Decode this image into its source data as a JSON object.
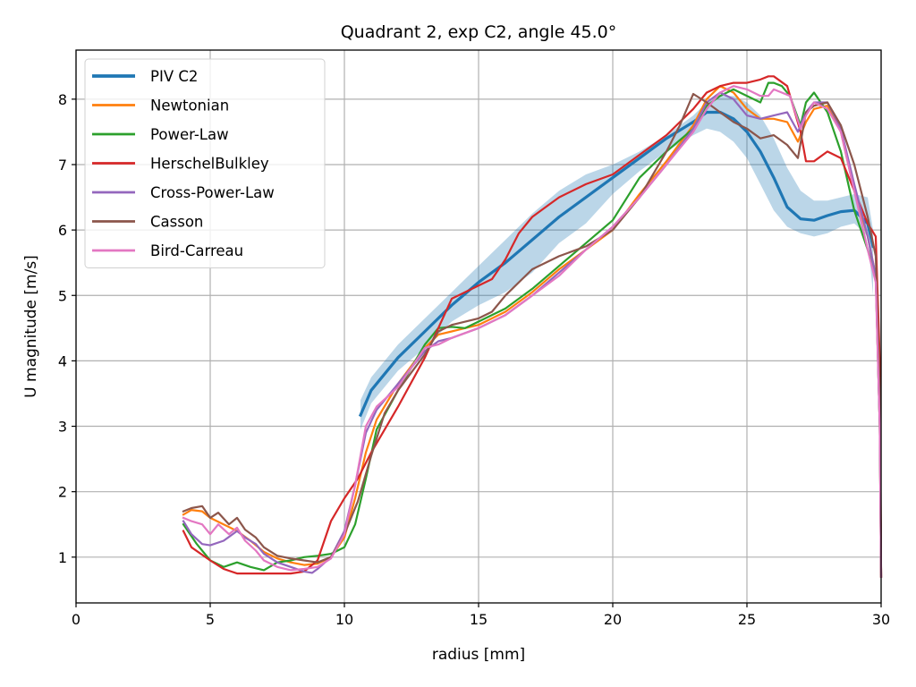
{
  "chart_data": {
    "type": "line",
    "title": "Quadrant 2, exp C2, angle 45.0°",
    "xlabel": "radius [mm]",
    "ylabel": "U magnitude [m/s]",
    "xlim": [
      0,
      30
    ],
    "ylim": [
      0.3,
      8.75
    ],
    "xticks": [
      0,
      5,
      10,
      15,
      20,
      25,
      30
    ],
    "yticks": [
      1,
      2,
      3,
      4,
      5,
      6,
      7,
      8
    ],
    "grid": true,
    "legend_position": "top-left",
    "band": {
      "series": "PIV C2",
      "color": "#1f77b4",
      "opacity": 0.3,
      "x": [
        10.6,
        11,
        12,
        13,
        14,
        15,
        16,
        17,
        18,
        19,
        20,
        21,
        22,
        23,
        23.5,
        24,
        24.5,
        25,
        25.5,
        26,
        26.5,
        27,
        27.5,
        28,
        28.5,
        29,
        29.5,
        29.7
      ],
      "upper": [
        3.4,
        3.75,
        4.25,
        4.65,
        5.05,
        5.45,
        5.85,
        6.25,
        6.6,
        6.85,
        7.0,
        7.2,
        7.45,
        7.75,
        7.95,
        8.05,
        8.05,
        7.95,
        7.75,
        7.4,
        6.95,
        6.6,
        6.45,
        6.45,
        6.5,
        6.55,
        6.5,
        6.0
      ],
      "lower": [
        2.95,
        3.35,
        3.85,
        4.2,
        4.6,
        4.85,
        5.05,
        5.35,
        5.8,
        6.1,
        6.55,
        6.9,
        7.2,
        7.45,
        7.55,
        7.5,
        7.35,
        7.1,
        6.7,
        6.3,
        6.05,
        5.95,
        5.9,
        5.95,
        6.05,
        6.1,
        5.9,
        5.0
      ]
    },
    "series": [
      {
        "name": "PIV C2",
        "color": "#1f77b4",
        "width": 3.2,
        "x": [
          10.6,
          11,
          12,
          13,
          14,
          15,
          16,
          17,
          18,
          19,
          20,
          21,
          22,
          23,
          23.5,
          24,
          24.5,
          25,
          25.5,
          26,
          26.5,
          27,
          27.5,
          28,
          28.5,
          29,
          29.5,
          29.7
        ],
        "y": [
          3.17,
          3.55,
          4.05,
          4.45,
          4.85,
          5.2,
          5.5,
          5.85,
          6.2,
          6.5,
          6.8,
          7.1,
          7.4,
          7.65,
          7.8,
          7.8,
          7.7,
          7.5,
          7.2,
          6.8,
          6.35,
          6.17,
          6.15,
          6.22,
          6.28,
          6.3,
          6.1,
          5.75
        ]
      },
      {
        "name": "Newtonian",
        "color": "#ff7f0e",
        "width": 2.2,
        "x": [
          4.0,
          4.3,
          4.7,
          5.0,
          5.5,
          6.0,
          6.5,
          7.0,
          7.5,
          8.0,
          8.5,
          9.0,
          9.5,
          10.0,
          10.4,
          10.8,
          11.2,
          12,
          13,
          13.5,
          14,
          15,
          16,
          17,
          18,
          19,
          20,
          21,
          22,
          23,
          23.5,
          24,
          24.5,
          25,
          25.5,
          26,
          26.5,
          26.9,
          27.2,
          27.5,
          28,
          28.5,
          29,
          29.5,
          29.8,
          29.95,
          30.0
        ],
        "y": [
          1.65,
          1.72,
          1.7,
          1.6,
          1.5,
          1.4,
          1.25,
          1.08,
          0.98,
          0.92,
          0.88,
          0.9,
          1.0,
          1.3,
          1.9,
          2.6,
          3.1,
          3.65,
          4.2,
          4.4,
          4.45,
          4.55,
          4.75,
          5.05,
          5.4,
          5.7,
          6.0,
          6.55,
          7.05,
          7.6,
          8.0,
          8.2,
          8.1,
          7.85,
          7.7,
          7.7,
          7.65,
          7.35,
          7.65,
          7.85,
          7.9,
          7.5,
          6.6,
          5.9,
          5.3,
          3.0,
          0.7
        ]
      },
      {
        "name": "Power-Law",
        "color": "#2ca02c",
        "width": 2.2,
        "x": [
          4.0,
          4.5,
          5.0,
          5.5,
          6.0,
          6.5,
          7.0,
          7.5,
          8.0,
          8.5,
          9.0,
          9.5,
          10.0,
          10.4,
          10.8,
          11.2,
          12,
          13,
          13.5,
          14,
          14.5,
          15,
          16,
          17,
          18,
          19,
          20,
          21,
          22,
          23,
          23.5,
          24,
          24.5,
          25,
          25.5,
          25.8,
          26,
          26.3,
          26.6,
          27,
          27.2,
          27.5,
          28,
          28.5,
          29,
          29.5,
          29.8,
          29.95,
          30.0
        ],
        "y": [
          1.5,
          1.2,
          0.95,
          0.85,
          0.92,
          0.85,
          0.8,
          0.92,
          0.95,
          1.0,
          1.02,
          1.05,
          1.15,
          1.5,
          2.2,
          2.95,
          3.55,
          4.25,
          4.5,
          4.52,
          4.5,
          4.6,
          4.8,
          5.1,
          5.45,
          5.8,
          6.15,
          6.8,
          7.2,
          7.55,
          7.9,
          8.05,
          8.15,
          8.05,
          7.95,
          8.25,
          8.25,
          8.2,
          8.05,
          7.6,
          7.95,
          8.1,
          7.8,
          7.2,
          6.3,
          5.7,
          5.3,
          3.0,
          0.7
        ]
      },
      {
        "name": "HerschelBulkley",
        "color": "#d62728",
        "width": 2.2,
        "x": [
          4.0,
          4.3,
          5.0,
          5.5,
          6.0,
          6.5,
          7.0,
          7.5,
          8.0,
          8.5,
          9.0,
          9.5,
          10.0,
          10.5,
          11,
          12,
          13,
          14,
          15,
          15.5,
          16,
          16.5,
          17,
          17.5,
          18,
          19,
          20,
          21,
          22,
          23,
          23.5,
          24,
          24.5,
          25,
          25.5,
          25.8,
          26,
          26.5,
          27,
          27.2,
          27.5,
          28,
          28.5,
          29,
          29.5,
          29.8,
          29.95,
          30.0
        ],
        "y": [
          1.4,
          1.15,
          0.95,
          0.82,
          0.75,
          0.75,
          0.75,
          0.75,
          0.75,
          0.78,
          0.95,
          1.55,
          1.9,
          2.2,
          2.6,
          3.3,
          4.05,
          4.95,
          5.15,
          5.25,
          5.55,
          5.95,
          6.2,
          6.35,
          6.5,
          6.7,
          6.85,
          7.15,
          7.45,
          7.85,
          8.1,
          8.2,
          8.25,
          8.25,
          8.3,
          8.35,
          8.35,
          8.2,
          7.5,
          7.05,
          7.05,
          7.2,
          7.1,
          6.6,
          6.1,
          5.9,
          4.0,
          0.7
        ]
      },
      {
        "name": "Cross-Power-Law",
        "color": "#9467bd",
        "width": 2.2,
        "x": [
          4.0,
          4.3,
          4.7,
          5.0,
          5.5,
          6.0,
          6.3,
          6.7,
          7.0,
          7.5,
          8.0,
          8.5,
          8.8,
          9.0,
          9.5,
          10.0,
          10.4,
          10.8,
          11.2,
          12,
          13,
          13.5,
          14,
          15,
          16,
          17,
          18,
          19,
          20,
          21,
          22,
          23,
          23.5,
          24,
          24.5,
          25,
          25.5,
          26,
          26.5,
          26.9,
          27.2,
          27.5,
          28,
          28.5,
          29,
          29.5,
          29.8,
          29.95,
          30.0
        ],
        "y": [
          1.55,
          1.35,
          1.2,
          1.18,
          1.25,
          1.4,
          1.3,
          1.2,
          1.05,
          0.92,
          0.85,
          0.78,
          0.76,
          0.82,
          1.0,
          1.4,
          2.1,
          2.9,
          3.25,
          3.65,
          4.15,
          4.3,
          4.35,
          4.5,
          4.7,
          5.0,
          5.35,
          5.7,
          6.05,
          6.5,
          7.0,
          7.55,
          7.95,
          8.1,
          8.0,
          7.75,
          7.7,
          7.75,
          7.8,
          7.5,
          7.8,
          7.95,
          7.95,
          7.55,
          6.7,
          5.9,
          5.3,
          3.0,
          0.7
        ]
      },
      {
        "name": "Casson",
        "color": "#8c564b",
        "width": 2.2,
        "x": [
          4.0,
          4.3,
          4.7,
          5.0,
          5.3,
          5.7,
          6.0,
          6.3,
          6.7,
          7.0,
          7.5,
          8.0,
          8.5,
          9.0,
          9.5,
          10.0,
          10.5,
          11,
          11.5,
          12,
          13,
          13.5,
          14,
          15,
          15.5,
          16,
          17,
          18,
          19,
          20,
          21,
          22,
          22.5,
          23,
          23.5,
          24,
          24.5,
          25,
          25.5,
          26,
          26.5,
          26.9,
          27.2,
          27.5,
          28,
          28.5,
          29,
          29.5,
          29.8,
          29.95,
          30.0
        ],
        "y": [
          1.7,
          1.75,
          1.78,
          1.6,
          1.68,
          1.5,
          1.6,
          1.42,
          1.3,
          1.15,
          1.02,
          0.98,
          0.95,
          0.92,
          1.0,
          1.35,
          1.85,
          2.55,
          3.2,
          3.55,
          4.1,
          4.45,
          4.55,
          4.65,
          4.75,
          5.0,
          5.4,
          5.6,
          5.75,
          6.0,
          6.5,
          7.2,
          7.6,
          8.08,
          7.95,
          7.8,
          7.65,
          7.55,
          7.4,
          7.45,
          7.3,
          7.1,
          7.8,
          7.9,
          7.95,
          7.6,
          7.0,
          6.2,
          5.6,
          3.5,
          0.7
        ]
      },
      {
        "name": "Bird-Carreau",
        "color": "#e377c2",
        "width": 2.2,
        "x": [
          4.0,
          4.3,
          4.7,
          5.0,
          5.3,
          5.7,
          6.0,
          6.3,
          6.7,
          7.0,
          7.5,
          8.0,
          8.5,
          9.0,
          9.5,
          10.0,
          10.4,
          10.8,
          11.2,
          12,
          13,
          13.5,
          14,
          15,
          16,
          17,
          18,
          19,
          20,
          21,
          22,
          23,
          23.5,
          24,
          24.5,
          25,
          25.5,
          25.8,
          26,
          26.3,
          26.6,
          27,
          27.2,
          27.5,
          28,
          28.5,
          29,
          29.5,
          29.8,
          29.95,
          30.0
        ],
        "y": [
          1.6,
          1.55,
          1.5,
          1.35,
          1.5,
          1.35,
          1.45,
          1.25,
          1.1,
          0.95,
          0.85,
          0.8,
          0.82,
          0.85,
          0.98,
          1.35,
          2.1,
          3.0,
          3.3,
          3.6,
          4.2,
          4.25,
          4.35,
          4.5,
          4.7,
          5.0,
          5.3,
          5.7,
          6.05,
          6.5,
          7.0,
          7.5,
          7.85,
          8.1,
          8.2,
          8.15,
          8.05,
          8.05,
          8.15,
          8.1,
          8.05,
          7.55,
          7.75,
          7.95,
          7.85,
          7.5,
          6.6,
          5.7,
          5.2,
          3.0,
          0.7
        ]
      }
    ]
  }
}
